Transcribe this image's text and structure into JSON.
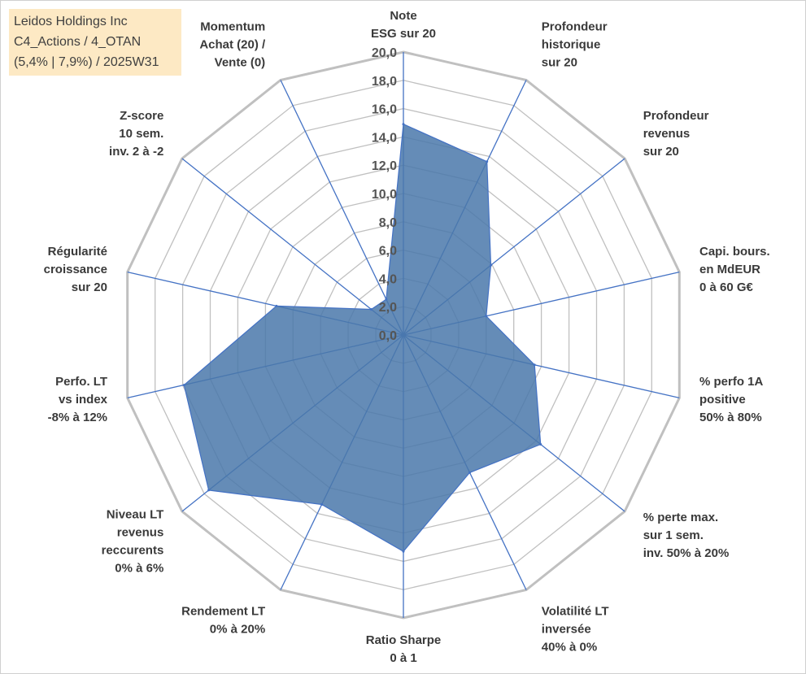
{
  "header": {
    "line1": "Leidos Holdings Inc",
    "line2": "C4_Actions / 4_OTAN",
    "line3": "(5,4% | 7,9%) / 2025W31"
  },
  "colors": {
    "fill": "#4a78aa",
    "stroke": "#4472c4",
    "grid": "#c0c0c0",
    "spoke": "#4472c4",
    "title_bg": "#fde9c4"
  },
  "chart_data": {
    "type": "radar",
    "title": "",
    "rmin": 0,
    "rmax": 20,
    "tick_step": 2,
    "ticks": [
      "0,0",
      "2,0",
      "4,0",
      "6,0",
      "8,0",
      "10,0",
      "12,0",
      "14,0",
      "16,0",
      "18,0",
      "20,0"
    ],
    "grid": true,
    "categories": [
      [
        "Note",
        "ESG sur 20"
      ],
      [
        "Profondeur",
        "historique",
        "sur 20"
      ],
      [
        "Profondeur",
        "revenus",
        "sur 20"
      ],
      [
        "Capi. bours.",
        "en MdEUR",
        "0 à 60 G€"
      ],
      [
        "% perfo 1A",
        "positive",
        "50% à 80%"
      ],
      [
        "% perte max.",
        "sur 1 sem.",
        "inv. 50% à 20%"
      ],
      [
        "Volatilité LT",
        "inversée",
        "40% à 0%"
      ],
      [
        "Ratio Sharpe",
        "0 à 1"
      ],
      [
        "Rendement LT",
        "0% à 20%"
      ],
      [
        "Niveau LT",
        "revenus",
        "reccurents",
        "0% à 6%"
      ],
      [
        "Perfo. LT",
        "vs index",
        "-8% à 12%"
      ],
      [
        "Régularité",
        "croissance",
        "sur 20"
      ],
      [
        "Z-score",
        "10 sem.",
        "inv. 2 à -2"
      ],
      [
        "Momentum",
        "Achat (20) /",
        "Vente (0)"
      ]
    ],
    "series": [
      {
        "values": [
          14.9,
          13.6,
          7.9,
          6.0,
          9.5,
          12.4,
          10.8,
          15.3,
          13.3,
          17.6,
          15.9,
          9.2,
          2.9,
          2.8
        ]
      }
    ]
  }
}
